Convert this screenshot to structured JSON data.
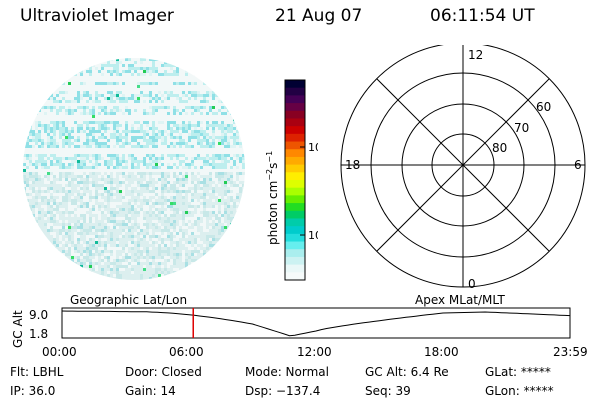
{
  "header": {
    "title": "Ultraviolet Imager",
    "date": "21 Aug 07",
    "time": "06:11:54 UT"
  },
  "colorbar": {
    "label": "photon cm",
    "label_sup1": "−2",
    "label_mid": "s",
    "label_sup2": "−1",
    "ticks": [
      "100",
      "10"
    ],
    "colors": [
      "#000033",
      "#220044",
      "#440055",
      "#660044",
      "#880022",
      "#aa0011",
      "#cc0000",
      "#dd2200",
      "#ee5500",
      "#ff8800",
      "#ffaa00",
      "#ffcc00",
      "#ffee00",
      "#ddff00",
      "#aaff00",
      "#66ee00",
      "#22dd22",
      "#00cc66",
      "#00ccaa",
      "#00cccc",
      "#22dddd",
      "#66eeee",
      "#aaeeee",
      "#ccf2f2",
      "#eaf8f8",
      "#f6fbfb"
    ]
  },
  "polar": {
    "mlt_labels": [
      "12",
      "18",
      "6",
      "0"
    ],
    "lat_labels": [
      "60",
      "70",
      "80"
    ]
  },
  "timeline": {
    "left_label": "Geographic Lat/Lon",
    "right_label": "Apex  MLat/MLT",
    "axis_title": "GC Alt",
    "y_ticks": [
      "9.0",
      "1.8"
    ],
    "x_ticks": [
      "00:00",
      "06:00",
      "12:00",
      "18:00",
      "23:59"
    ],
    "current_time_hours": 6.2
  },
  "status": {
    "flt": "Flt: LBHL",
    "ip": "IP: 36.0",
    "door": "Door: Closed",
    "gain": "Gain: 14",
    "mode": "Mode: Normal",
    "dsp": "Dsp: −137.4",
    "gcalt": "GC Alt: 6.4 Re",
    "seq": "Seq: 39",
    "glat": "GLat: *****",
    "glon": "GLon: *****"
  }
}
